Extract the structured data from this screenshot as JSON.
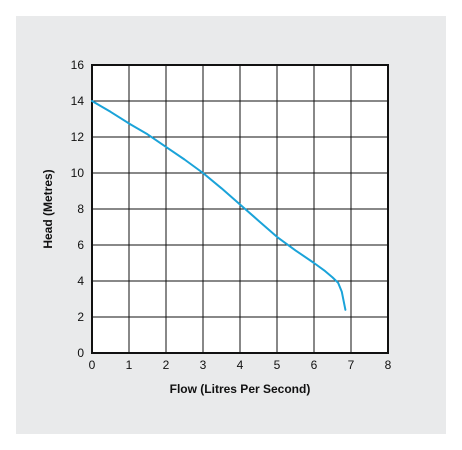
{
  "chart_data": {
    "type": "line",
    "title": "",
    "xlabel": "Flow (Litres Per Second)",
    "ylabel": "Head (Metres)",
    "xlim": [
      0,
      8
    ],
    "ylim": [
      0,
      16
    ],
    "x_ticks": [
      0,
      1,
      2,
      3,
      4,
      5,
      6,
      7,
      8
    ],
    "y_ticks": [
      0,
      2,
      4,
      6,
      8,
      10,
      12,
      14,
      16
    ],
    "grid": true,
    "legend": "none",
    "series": [
      {
        "color": "#1aa3d9",
        "x": [
          0,
          0.5,
          1,
          1.5,
          2,
          2.5,
          3,
          3.5,
          4,
          4.5,
          5,
          5.5,
          6,
          6.3,
          6.5,
          6.65,
          6.75,
          6.8,
          6.85
        ],
        "y": [
          14,
          13.4,
          12.75,
          12.15,
          11.45,
          10.75,
          10.0,
          9.15,
          8.25,
          7.35,
          6.45,
          5.7,
          5.0,
          4.55,
          4.2,
          3.9,
          3.4,
          2.9,
          2.4
        ]
      }
    ]
  },
  "colors": {
    "card_background": "#e9eaeb",
    "plot_background": "#ffffff",
    "grid": "#111111",
    "series": "#1aa3d9"
  }
}
